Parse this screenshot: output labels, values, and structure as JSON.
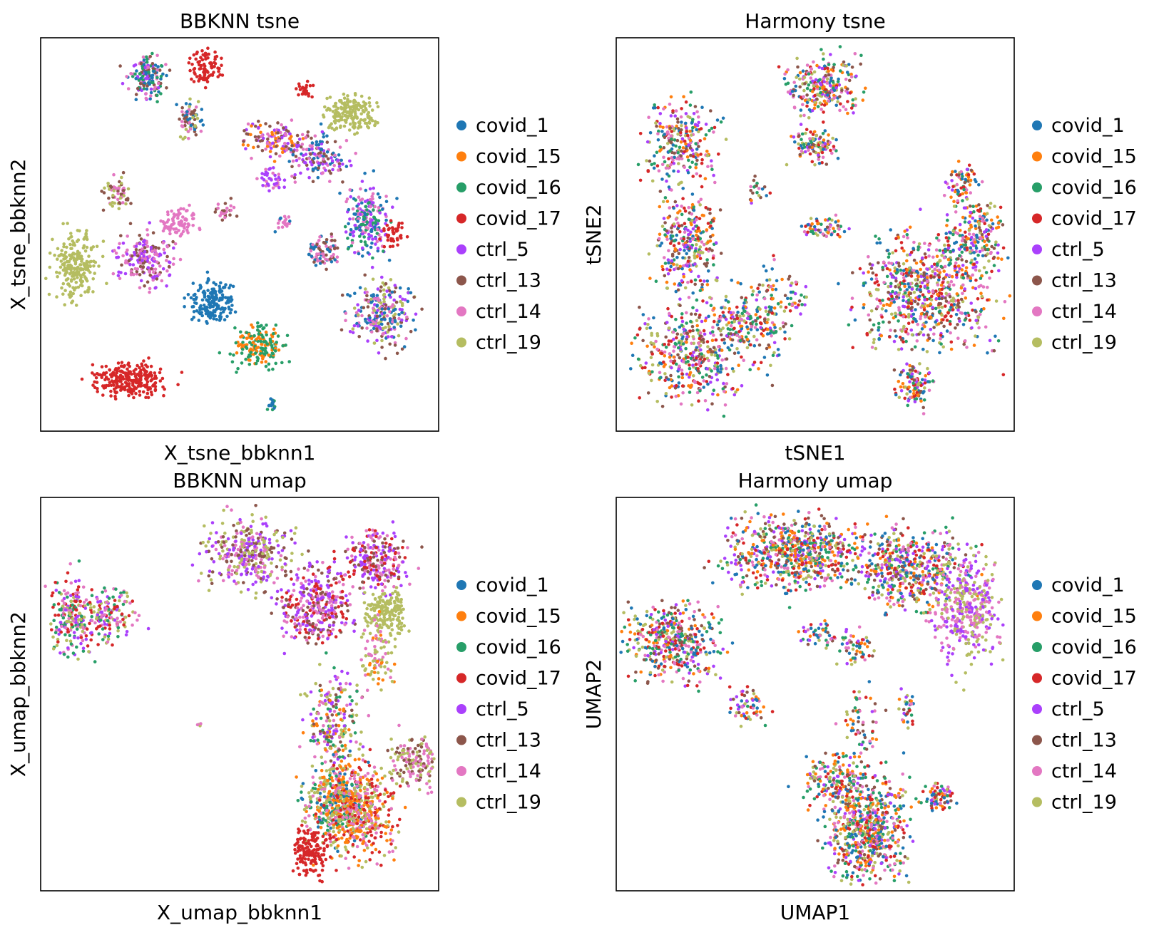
{
  "legend": {
    "items": [
      {
        "label": "covid_1",
        "color": "#1f77b4"
      },
      {
        "label": "covid_15",
        "color": "#ff7f0e"
      },
      {
        "label": "covid_16",
        "color": "#279e68"
      },
      {
        "label": "covid_17",
        "color": "#d62728"
      },
      {
        "label": "ctrl_5",
        "color": "#aa40fc"
      },
      {
        "label": "ctrl_13",
        "color": "#8c564b"
      },
      {
        "label": "ctrl_14",
        "color": "#e377c2"
      },
      {
        "label": "ctrl_19",
        "color": "#b5bd61"
      }
    ]
  },
  "chart_data": [
    {
      "type": "scatter",
      "title": "BBKNN tsne",
      "xlabel": "X_tsne_bbknn1",
      "ylabel": "X_tsne_bbknn2",
      "ticks": "none",
      "legend_placement": "right",
      "clusters": [
        {
          "cx": 0.27,
          "cy": 0.9,
          "rx": 0.04,
          "ry": 0.05,
          "n": 160,
          "mix": [
            4,
            6,
            5,
            0,
            2
          ]
        },
        {
          "cx": 0.42,
          "cy": 0.92,
          "rx": 0.04,
          "ry": 0.04,
          "n": 90,
          "mix": [
            3
          ]
        },
        {
          "cx": 0.37,
          "cy": 0.79,
          "rx": 0.03,
          "ry": 0.04,
          "n": 70,
          "mix": [
            0,
            6,
            7,
            5
          ]
        },
        {
          "cx": 0.78,
          "cy": 0.81,
          "rx": 0.06,
          "ry": 0.04,
          "n": 180,
          "mix": [
            7
          ]
        },
        {
          "cx": 0.59,
          "cy": 0.74,
          "rx": 0.07,
          "ry": 0.04,
          "n": 130,
          "mix": [
            5,
            6,
            4,
            1
          ]
        },
        {
          "cx": 0.7,
          "cy": 0.7,
          "rx": 0.06,
          "ry": 0.05,
          "n": 150,
          "mix": [
            5,
            4,
            6,
            0
          ]
        },
        {
          "cx": 0.82,
          "cy": 0.53,
          "rx": 0.05,
          "ry": 0.08,
          "n": 220,
          "mix": [
            4,
            6,
            0,
            2
          ]
        },
        {
          "cx": 0.89,
          "cy": 0.5,
          "rx": 0.03,
          "ry": 0.03,
          "n": 40,
          "mix": [
            3
          ]
        },
        {
          "cx": 0.09,
          "cy": 0.42,
          "rx": 0.05,
          "ry": 0.08,
          "n": 220,
          "mix": [
            7
          ]
        },
        {
          "cx": 0.26,
          "cy": 0.44,
          "rx": 0.06,
          "ry": 0.06,
          "n": 200,
          "mix": [
            6,
            5,
            4
          ]
        },
        {
          "cx": 0.19,
          "cy": 0.61,
          "rx": 0.03,
          "ry": 0.04,
          "n": 60,
          "mix": [
            5,
            6,
            7
          ]
        },
        {
          "cx": 0.35,
          "cy": 0.53,
          "rx": 0.04,
          "ry": 0.03,
          "n": 80,
          "mix": [
            6
          ]
        },
        {
          "cx": 0.43,
          "cy": 0.33,
          "rx": 0.05,
          "ry": 0.05,
          "n": 180,
          "mix": [
            0
          ]
        },
        {
          "cx": 0.55,
          "cy": 0.22,
          "rx": 0.06,
          "ry": 0.05,
          "n": 170,
          "mix": [
            2,
            1
          ]
        },
        {
          "cx": 0.22,
          "cy": 0.13,
          "rx": 0.08,
          "ry": 0.04,
          "n": 260,
          "mix": [
            3
          ]
        },
        {
          "cx": 0.71,
          "cy": 0.46,
          "rx": 0.04,
          "ry": 0.04,
          "n": 80,
          "mix": [
            6,
            5,
            0
          ]
        },
        {
          "cx": 0.86,
          "cy": 0.3,
          "rx": 0.07,
          "ry": 0.08,
          "n": 250,
          "mix": [
            6,
            5,
            0,
            7,
            4
          ]
        },
        {
          "cx": 0.58,
          "cy": 0.64,
          "rx": 0.03,
          "ry": 0.03,
          "n": 40,
          "mix": [
            6,
            4
          ]
        },
        {
          "cx": 0.58,
          "cy": 0.07,
          "rx": 0.01,
          "ry": 0.02,
          "n": 15,
          "mix": [
            0,
            2
          ]
        },
        {
          "cx": 0.46,
          "cy": 0.56,
          "rx": 0.02,
          "ry": 0.02,
          "n": 25,
          "mix": [
            6,
            5
          ]
        },
        {
          "cx": 0.61,
          "cy": 0.53,
          "rx": 0.02,
          "ry": 0.02,
          "n": 20,
          "mix": [
            6,
            0
          ]
        },
        {
          "cx": 0.66,
          "cy": 0.87,
          "rx": 0.02,
          "ry": 0.02,
          "n": 25,
          "mix": [
            3
          ]
        }
      ]
    },
    {
      "type": "scatter",
      "title": "Harmony tsne",
      "xlabel": "tSNE1",
      "ylabel": "tSNE2",
      "ticks": "none",
      "legend_placement": "right",
      "clusters": [
        {
          "cx": 0.52,
          "cy": 0.88,
          "rx": 0.08,
          "ry": 0.07,
          "n": 260,
          "mix": [
            0,
            1,
            2,
            3,
            4,
            5,
            6,
            7
          ]
        },
        {
          "cx": 0.5,
          "cy": 0.73,
          "rx": 0.05,
          "ry": 0.04,
          "n": 110,
          "mix": [
            0,
            1,
            2,
            3,
            4,
            5,
            6,
            7
          ]
        },
        {
          "cx": 0.16,
          "cy": 0.74,
          "rx": 0.08,
          "ry": 0.09,
          "n": 260,
          "mix": [
            0,
            1,
            2,
            3,
            4,
            5,
            6,
            7
          ]
        },
        {
          "cx": 0.18,
          "cy": 0.48,
          "rx": 0.07,
          "ry": 0.12,
          "n": 300,
          "mix": [
            0,
            1,
            2,
            3,
            4,
            5,
            6,
            7
          ]
        },
        {
          "cx": 0.19,
          "cy": 0.2,
          "rx": 0.12,
          "ry": 0.11,
          "n": 420,
          "mix": [
            0,
            1,
            2,
            3,
            4,
            5,
            6,
            7
          ]
        },
        {
          "cx": 0.32,
          "cy": 0.28,
          "rx": 0.07,
          "ry": 0.08,
          "n": 150,
          "mix": [
            0,
            1,
            2,
            3,
            4,
            5,
            6,
            7
          ]
        },
        {
          "cx": 0.78,
          "cy": 0.36,
          "rx": 0.15,
          "ry": 0.13,
          "n": 700,
          "mix": [
            0,
            1,
            2,
            3,
            4,
            5,
            6,
            7
          ]
        },
        {
          "cx": 0.9,
          "cy": 0.5,
          "rx": 0.06,
          "ry": 0.09,
          "n": 200,
          "mix": [
            0,
            1,
            2,
            3,
            4,
            5,
            6,
            7
          ]
        },
        {
          "cx": 0.75,
          "cy": 0.12,
          "rx": 0.04,
          "ry": 0.05,
          "n": 110,
          "mix": [
            0,
            1,
            2,
            3,
            4,
            5,
            6,
            7
          ]
        },
        {
          "cx": 0.87,
          "cy": 0.63,
          "rx": 0.03,
          "ry": 0.04,
          "n": 60,
          "mix": [
            0,
            1,
            2,
            3,
            4,
            5,
            6,
            7
          ]
        },
        {
          "cx": 0.52,
          "cy": 0.52,
          "rx": 0.06,
          "ry": 0.03,
          "n": 60,
          "mix": [
            0,
            1,
            2,
            3,
            4,
            5,
            6,
            7
          ]
        },
        {
          "cx": 0.39,
          "cy": 0.3,
          "rx": 0.04,
          "ry": 0.12,
          "n": 80,
          "mix": [
            0,
            1,
            2,
            3,
            4,
            5,
            6,
            7
          ]
        },
        {
          "cx": 0.36,
          "cy": 0.62,
          "rx": 0.02,
          "ry": 0.03,
          "n": 20,
          "mix": [
            0,
            1,
            2,
            3,
            4,
            5,
            6,
            7
          ]
        },
        {
          "cx": 0.45,
          "cy": 0.35,
          "rx": 0.03,
          "ry": 0.04,
          "n": 30,
          "mix": [
            0,
            1,
            2,
            3,
            4,
            5,
            6,
            7
          ]
        }
      ]
    },
    {
      "type": "scatter",
      "title": "BBKNN umap",
      "xlabel": "X_umap_bbknn1",
      "ylabel": "X_umap_bbknn2",
      "ticks": "none",
      "legend_placement": "right",
      "clusters": [
        {
          "cx": 0.08,
          "cy": 0.69,
          "rx": 0.05,
          "ry": 0.09,
          "n": 220,
          "mix": [
            4,
            3,
            6,
            2,
            7
          ]
        },
        {
          "cx": 0.18,
          "cy": 0.7,
          "rx": 0.06,
          "ry": 0.06,
          "n": 140,
          "mix": [
            4,
            6,
            2,
            7,
            3
          ]
        },
        {
          "cx": 0.52,
          "cy": 0.86,
          "rx": 0.09,
          "ry": 0.08,
          "n": 350,
          "mix": [
            7,
            6,
            4,
            5
          ]
        },
        {
          "cx": 0.69,
          "cy": 0.73,
          "rx": 0.08,
          "ry": 0.09,
          "n": 350,
          "mix": [
            4,
            6,
            5,
            3
          ]
        },
        {
          "cx": 0.84,
          "cy": 0.84,
          "rx": 0.07,
          "ry": 0.07,
          "n": 250,
          "mix": [
            4,
            6,
            5,
            3
          ]
        },
        {
          "cx": 0.87,
          "cy": 0.71,
          "rx": 0.05,
          "ry": 0.05,
          "n": 170,
          "mix": [
            7
          ]
        },
        {
          "cx": 0.74,
          "cy": 0.43,
          "rx": 0.06,
          "ry": 0.12,
          "n": 220,
          "mix": [
            1,
            6,
            7,
            4,
            5,
            2
          ]
        },
        {
          "cx": 0.74,
          "cy": 0.23,
          "rx": 0.07,
          "ry": 0.09,
          "n": 400,
          "mix": [
            2,
            0,
            1,
            6,
            7
          ]
        },
        {
          "cx": 0.8,
          "cy": 0.21,
          "rx": 0.08,
          "ry": 0.11,
          "n": 450,
          "mix": [
            7,
            3,
            6,
            1
          ]
        },
        {
          "cx": 0.94,
          "cy": 0.33,
          "rx": 0.06,
          "ry": 0.06,
          "n": 160,
          "mix": [
            6,
            7,
            5
          ]
        },
        {
          "cx": 0.68,
          "cy": 0.1,
          "rx": 0.04,
          "ry": 0.06,
          "n": 150,
          "mix": [
            3
          ]
        },
        {
          "cx": 0.4,
          "cy": 0.42,
          "rx": 0.005,
          "ry": 0.005,
          "n": 4,
          "mix": [
            6,
            7
          ]
        },
        {
          "cx": 0.85,
          "cy": 0.6,
          "rx": 0.04,
          "ry": 0.08,
          "n": 90,
          "mix": [
            1,
            7,
            6
          ]
        }
      ]
    },
    {
      "type": "scatter",
      "title": "Harmony umap",
      "xlabel": "UMAP1",
      "ylabel": "UMAP2",
      "ticks": "none",
      "legend_placement": "right",
      "clusters": [
        {
          "cx": 0.14,
          "cy": 0.64,
          "rx": 0.1,
          "ry": 0.09,
          "n": 420,
          "mix": [
            0,
            1,
            2,
            3,
            4,
            5,
            6,
            7
          ]
        },
        {
          "cx": 0.45,
          "cy": 0.86,
          "rx": 0.15,
          "ry": 0.08,
          "n": 650,
          "mix": [
            0,
            1,
            2,
            3,
            4,
            5,
            6,
            7
          ]
        },
        {
          "cx": 0.74,
          "cy": 0.82,
          "rx": 0.12,
          "ry": 0.09,
          "n": 500,
          "mix": [
            0,
            1,
            2,
            3,
            4,
            5,
            6,
            7
          ]
        },
        {
          "cx": 0.88,
          "cy": 0.72,
          "rx": 0.07,
          "ry": 0.12,
          "n": 400,
          "mix": [
            7,
            6,
            4
          ]
        },
        {
          "cx": 0.6,
          "cy": 0.62,
          "rx": 0.05,
          "ry": 0.04,
          "n": 60,
          "mix": [
            0,
            1,
            2,
            3,
            4,
            5,
            6,
            7
          ]
        },
        {
          "cx": 0.63,
          "cy": 0.16,
          "rx": 0.09,
          "ry": 0.12,
          "n": 650,
          "mix": [
            0,
            1,
            2,
            3,
            4,
            5,
            6,
            7
          ]
        },
        {
          "cx": 0.55,
          "cy": 0.29,
          "rx": 0.07,
          "ry": 0.06,
          "n": 150,
          "mix": [
            0,
            1,
            2,
            3,
            4,
            5,
            6,
            7
          ]
        },
        {
          "cx": 0.81,
          "cy": 0.24,
          "rx": 0.04,
          "ry": 0.03,
          "n": 80,
          "mix": [
            0,
            1,
            2,
            3,
            4,
            5,
            6,
            7
          ]
        },
        {
          "cx": 0.61,
          "cy": 0.42,
          "rx": 0.04,
          "ry": 0.08,
          "n": 60,
          "mix": [
            0,
            1,
            2,
            3,
            4,
            5,
            6,
            7
          ]
        },
        {
          "cx": 0.33,
          "cy": 0.47,
          "rx": 0.04,
          "ry": 0.05,
          "n": 60,
          "mix": [
            0,
            1,
            2,
            3,
            4,
            5,
            6,
            7
          ]
        },
        {
          "cx": 0.73,
          "cy": 0.47,
          "rx": 0.02,
          "ry": 0.05,
          "n": 30,
          "mix": [
            0,
            1,
            2,
            3,
            4,
            5,
            6,
            7
          ]
        },
        {
          "cx": 0.5,
          "cy": 0.65,
          "rx": 0.05,
          "ry": 0.03,
          "n": 40,
          "mix": [
            0,
            1,
            2,
            3,
            4,
            5,
            6,
            7
          ]
        }
      ]
    }
  ]
}
